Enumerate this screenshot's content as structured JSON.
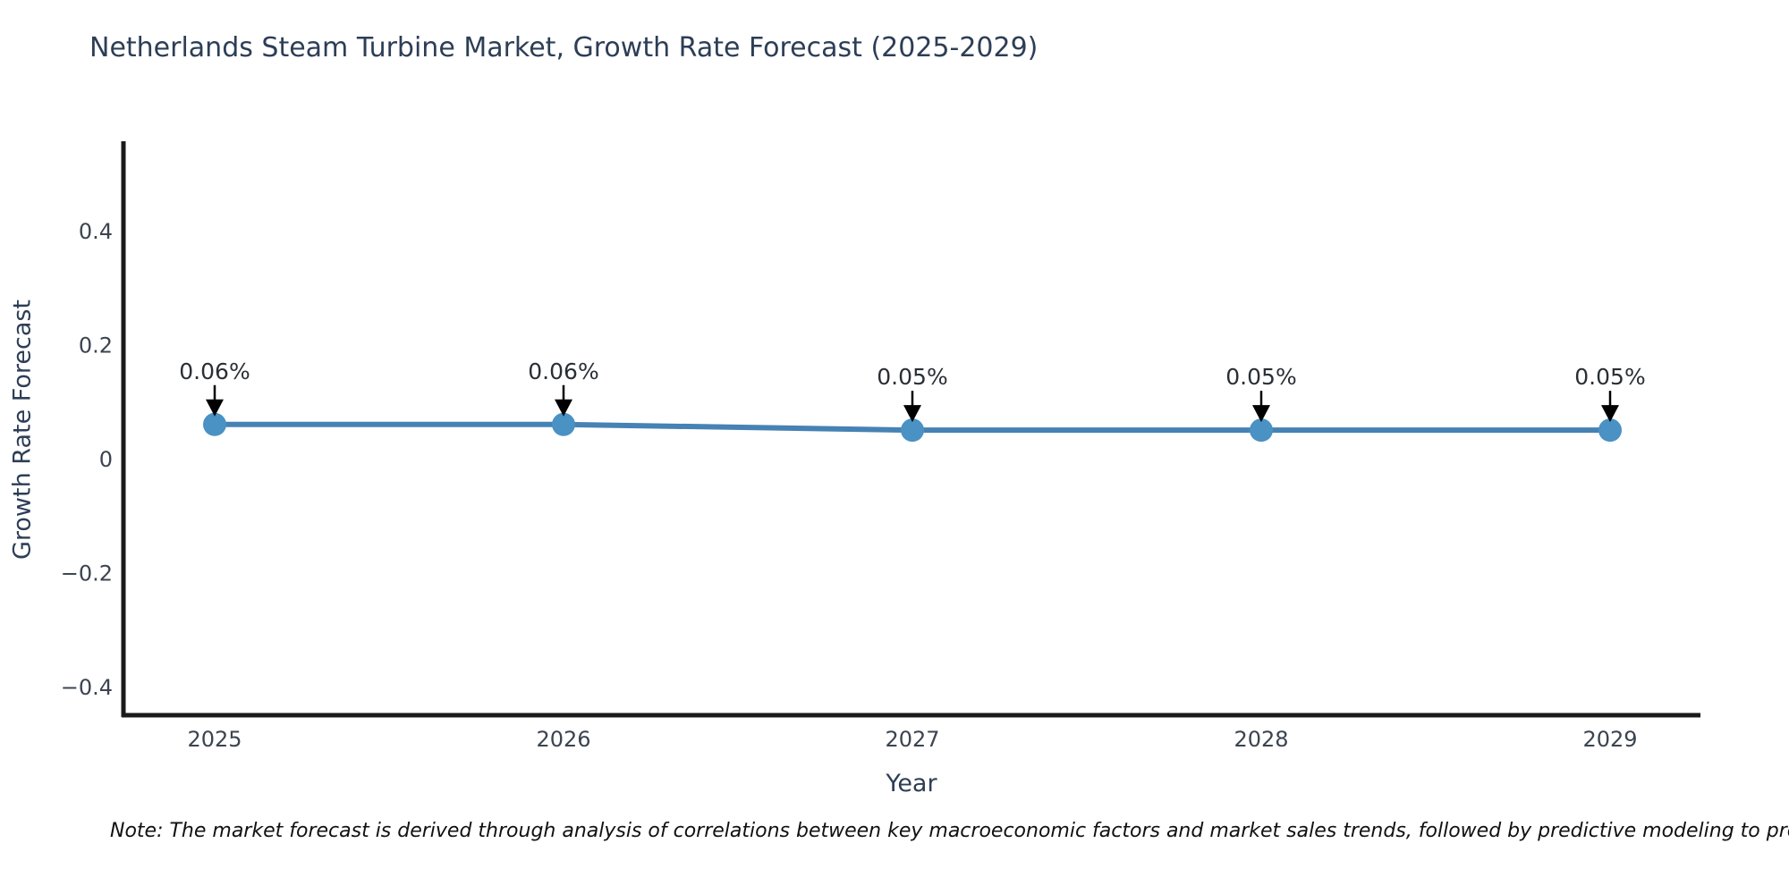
{
  "title": "Netherlands Steam Turbine Market, Growth Rate Forecast (2025-2029)",
  "note": "Note: The market forecast is derived through analysis of correlations between key macroeconomic factors and market sales trends, followed by predictive modeling to project future sal",
  "chart_data": {
    "type": "line",
    "title": "Netherlands Steam Turbine Market, Growth Rate Forecast (2025-2029)",
    "xlabel": "Year",
    "ylabel": "Growth Rate Forecast",
    "x": [
      2025,
      2026,
      2027,
      2028,
      2029
    ],
    "values": [
      0.06,
      0.06,
      0.05,
      0.05,
      0.05
    ],
    "point_labels": [
      "0.06%",
      "0.06%",
      "0.05%",
      "0.05%",
      "0.05%"
    ],
    "yticks": [
      0.4,
      0.2,
      0,
      -0.2,
      -0.4
    ],
    "ylim": [
      -0.45,
      0.55
    ],
    "xlim": [
      2024.74,
      2029.26
    ],
    "grid": false,
    "legend": "none",
    "line_color": "#4682b4",
    "marker_color": "#4a91c4",
    "arrow_color": "#000000",
    "spine_color": "#1a1a1a"
  }
}
